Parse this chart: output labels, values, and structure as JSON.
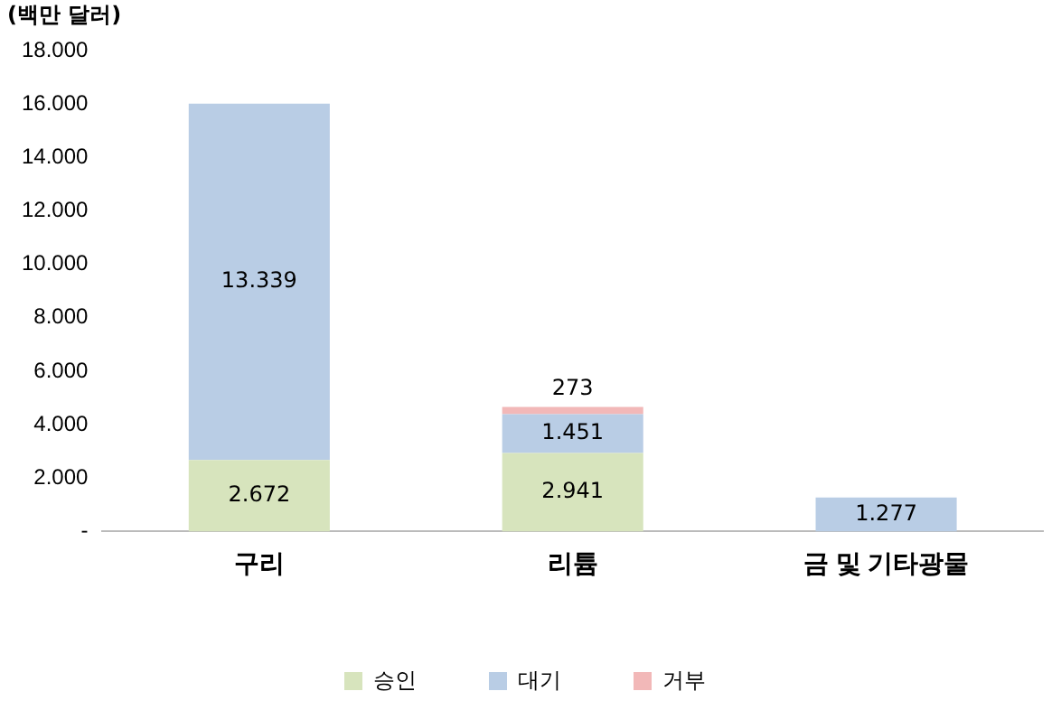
{
  "chart_data": {
    "type": "bar",
    "stacked": true,
    "ylabel": "(백만 달러)",
    "categories": [
      "구리",
      "리튬",
      "금 및 기타광물"
    ],
    "series": [
      {
        "name": "승인",
        "color": "#d7e4bd",
        "values": [
          2672,
          2941,
          null
        ],
        "value_labels": [
          "2.672",
          "2.941",
          null
        ]
      },
      {
        "name": "대기",
        "color": "#b9cde5",
        "values": [
          13339,
          1451,
          1277
        ],
        "value_labels": [
          "13.339",
          "1.451",
          "1.277"
        ]
      },
      {
        "name": "거부",
        "color": "#f2b8b8",
        "values": [
          null,
          273,
          null
        ],
        "value_labels": [
          null,
          "273",
          null
        ]
      }
    ],
    "ylim": [
      0,
      18000
    ],
    "yticks": [
      {
        "value": 0,
        "label": "-"
      },
      {
        "value": 2000,
        "label": "2.000"
      },
      {
        "value": 4000,
        "label": "4.000"
      },
      {
        "value": 6000,
        "label": "6.000"
      },
      {
        "value": 8000,
        "label": "8.000"
      },
      {
        "value": 10000,
        "label": "10.000"
      },
      {
        "value": 12000,
        "label": "12.000"
      },
      {
        "value": 14000,
        "label": "14.000"
      },
      {
        "value": 16000,
        "label": "16.000"
      },
      {
        "value": 18000,
        "label": "18.000"
      }
    ],
    "grid": false,
    "legend": "bottom"
  }
}
